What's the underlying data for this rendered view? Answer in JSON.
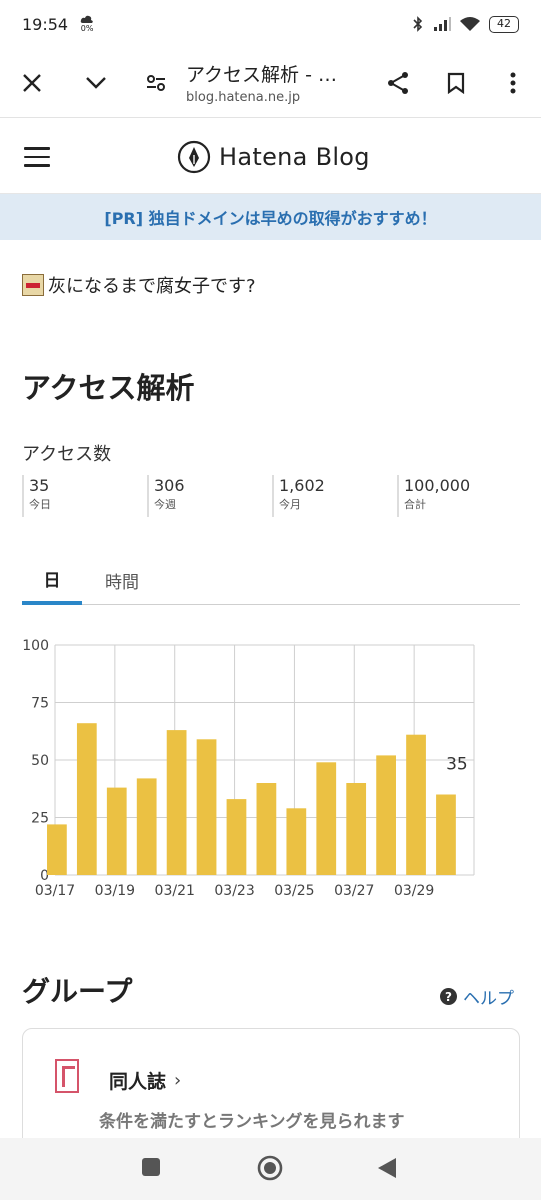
{
  "status": {
    "time": "19:54",
    "weather_pct": "0%",
    "battery": "42"
  },
  "browser": {
    "title": "アクセス解析 - …",
    "url": "blog.hatena.ne.jp"
  },
  "header": {
    "brand": "Hatena Blog"
  },
  "banner": {
    "text": "[PR] 独自ドメインは早めの取得がおすすめ！"
  },
  "blog": {
    "name": "灰になるまで腐女子です?"
  },
  "page": {
    "title": "アクセス解析",
    "access_label": "アクセス数"
  },
  "stats": [
    {
      "value": "35",
      "label": "今日"
    },
    {
      "value": "306",
      "label": "今週"
    },
    {
      "value": "1,602",
      "label": "今月"
    },
    {
      "value": "100,000",
      "label": "合計"
    }
  ],
  "tabs": [
    {
      "label": "日",
      "active": true
    },
    {
      "label": "時間",
      "active": false
    }
  ],
  "chart_data": {
    "type": "bar",
    "categories": [
      "03/17",
      "03/18",
      "03/19",
      "03/20",
      "03/21",
      "03/22",
      "03/23",
      "03/24",
      "03/25",
      "03/26",
      "03/27",
      "03/28",
      "03/29",
      "03/30"
    ],
    "x_tick_labels": [
      "03/17",
      "03/19",
      "03/21",
      "03/23",
      "03/25",
      "03/27",
      "03/29"
    ],
    "values": [
      22,
      66,
      38,
      42,
      63,
      59,
      33,
      40,
      29,
      49,
      40,
      52,
      61,
      35
    ],
    "last_value_label": "35",
    "y_ticks": [
      "0",
      "25",
      "50",
      "75",
      "100"
    ],
    "ylim": [
      0,
      100
    ],
    "bar_color": "#ebc143",
    "grid": true
  },
  "group": {
    "title": "グループ",
    "help": "ヘルプ",
    "name": "同人誌",
    "desc": "条件を満たすとランキングを見られます"
  },
  "colors": {
    "accent": "#2a86c8",
    "link": "#2a6fb0",
    "banner_bg": "#dfeaf4"
  }
}
